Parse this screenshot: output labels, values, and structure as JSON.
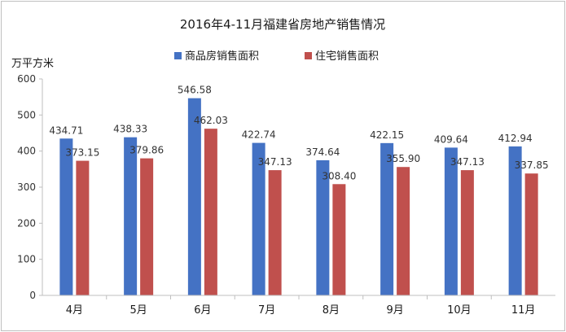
{
  "chart_data": {
    "type": "bar",
    "title": "2016年4-11月福建省房地产销售情况",
    "ylabel": "万平方米",
    "xlabel": "",
    "categories": [
      "4月",
      "5月",
      "6月",
      "7月",
      "8月",
      "9月",
      "10月",
      "11月"
    ],
    "series": [
      {
        "name": "商品房销售面积",
        "color": "#4472c4",
        "values": [
          434.71,
          438.33,
          546.58,
          422.74,
          374.64,
          422.15,
          409.64,
          412.94
        ],
        "labels": [
          "434.71",
          "438.33",
          "546.58",
          "422.74",
          "374.64",
          "422.15",
          "409.64",
          "412.94"
        ]
      },
      {
        "name": "住宅销售面积",
        "color": "#c0504d",
        "values": [
          373.15,
          379.86,
          462.03,
          347.13,
          308.4,
          355.9,
          347.13,
          337.85
        ],
        "labels": [
          "373.15",
          "379.86",
          "462.03",
          "347.13",
          "308.40",
          "355.90",
          "347.13",
          "337.85"
        ]
      }
    ],
    "ylim": [
      0,
      600
    ],
    "yticks": [
      "0",
      "100",
      "200",
      "300",
      "400",
      "500",
      "600"
    ],
    "grid": false,
    "legend_position": "top-center"
  }
}
